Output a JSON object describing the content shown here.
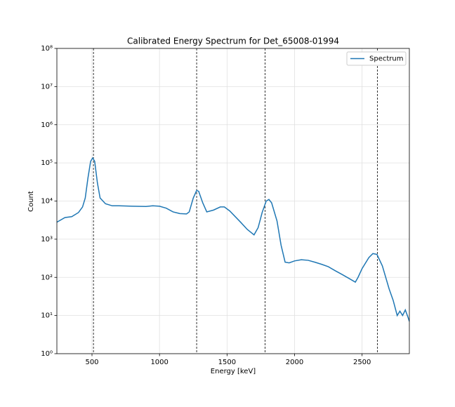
{
  "chart_data": {
    "type": "line",
    "title": "Calibrated Energy Spectrum for Det_65008-01994",
    "xlabel": "Energy [keV]",
    "ylabel": "Count",
    "x": [
      240,
      300,
      350,
      400,
      430,
      450,
      470,
      490,
      505,
      520,
      540,
      560,
      600,
      650,
      700,
      800,
      900,
      950,
      1000,
      1050,
      1100,
      1150,
      1200,
      1220,
      1250,
      1275,
      1290,
      1320,
      1350,
      1400,
      1450,
      1480,
      1520,
      1600,
      1650,
      1700,
      1730,
      1760,
      1790,
      1810,
      1830,
      1870,
      1900,
      1930,
      1960,
      2000,
      2050,
      2100,
      2150,
      2200,
      2250,
      2300,
      2350,
      2400,
      2450,
      2470,
      2500,
      2550,
      2580,
      2610,
      2650,
      2700,
      2730,
      2760,
      2780,
      2800,
      2820,
      2840,
      2850
    ],
    "series": [
      {
        "name": "Spectrum",
        "color": "#1f77b4",
        "values": [
          2800,
          3700,
          3900,
          5000,
          7000,
          12000,
          40000,
          110000,
          135000,
          110000,
          30000,
          12000,
          8500,
          7500,
          7500,
          7300,
          7200,
          7500,
          7300,
          6500,
          5200,
          4700,
          4600,
          5200,
          12000,
          19000,
          18000,
          9000,
          5200,
          5800,
          7000,
          7000,
          5500,
          2800,
          1800,
          1300,
          2000,
          5000,
          10000,
          11000,
          9000,
          3000,
          700,
          250,
          240,
          270,
          290,
          280,
          250,
          220,
          190,
          150,
          120,
          95,
          75,
          100,
          170,
          330,
          420,
          400,
          200,
          50,
          25,
          10,
          13,
          10,
          14,
          9,
          7
        ]
      }
    ],
    "reference_lines": [
      511,
      1275,
      1782,
      2614
    ],
    "xlim": [
      240,
      2850
    ],
    "xticks": [
      500,
      1000,
      1500,
      2000,
      2500
    ],
    "ylim": [
      1,
      100000000
    ],
    "log_y": true,
    "yticks": [
      {
        "value": 1,
        "label": "10⁰"
      },
      {
        "value": 10,
        "label": "10¹"
      },
      {
        "value": 100,
        "label": "10²"
      },
      {
        "value": 1000,
        "label": "10³"
      },
      {
        "value": 10000,
        "label": "10⁴"
      },
      {
        "value": 100000,
        "label": "10⁵"
      },
      {
        "value": 1000000,
        "label": "10⁶"
      },
      {
        "value": 10000000,
        "label": "10⁷"
      },
      {
        "value": 100000000,
        "label": "10⁸"
      }
    ],
    "grid": true,
    "legend": "upper right"
  }
}
